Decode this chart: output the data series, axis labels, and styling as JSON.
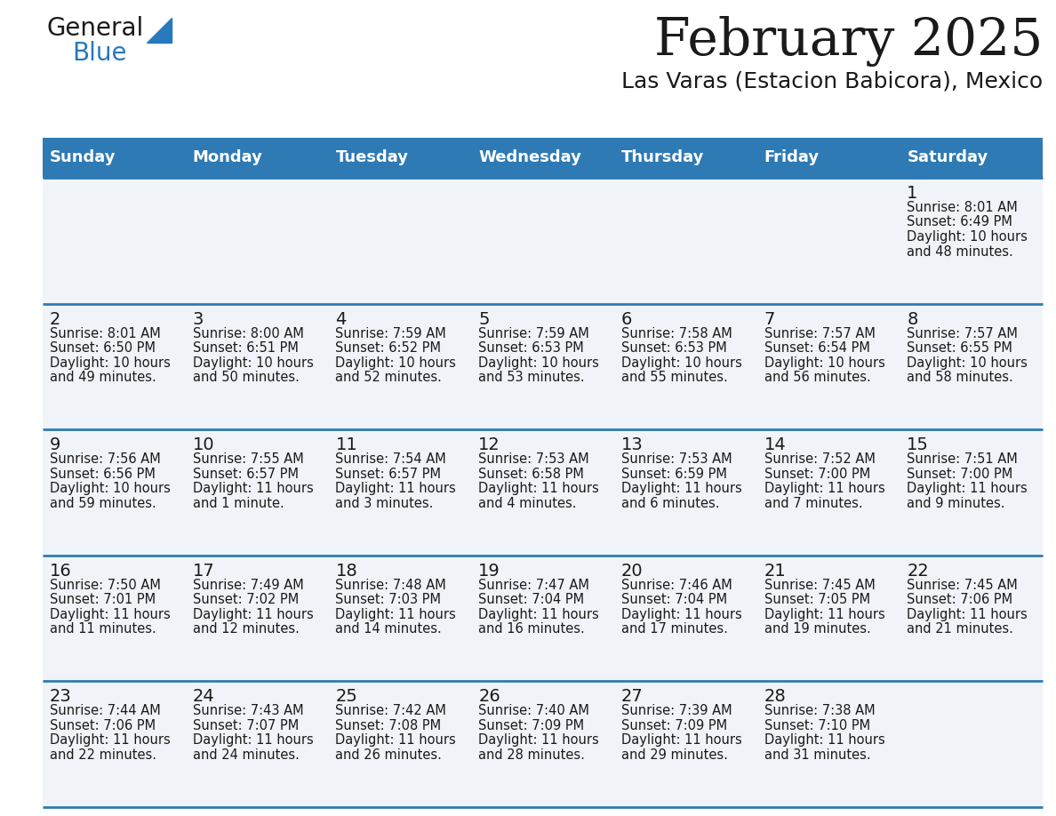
{
  "title": "February 2025",
  "subtitle": "Las Varas (Estacion Babicora), Mexico",
  "header_bg_color": "#2e7ab5",
  "header_text_color": "#ffffff",
  "bg_color": "#ffffff",
  "cell_bg": "#f0f4f8",
  "divider_color": "#2e7ab5",
  "day_names": [
    "Sunday",
    "Monday",
    "Tuesday",
    "Wednesday",
    "Thursday",
    "Friday",
    "Saturday"
  ],
  "days": [
    {
      "day": 1,
      "col": 6,
      "row": 0,
      "sunrise": "8:01 AM",
      "sunset": "6:49 PM",
      "daylight_line1": "Daylight: 10 hours",
      "daylight_line2": "and 48 minutes."
    },
    {
      "day": 2,
      "col": 0,
      "row": 1,
      "sunrise": "8:01 AM",
      "sunset": "6:50 PM",
      "daylight_line1": "Daylight: 10 hours",
      "daylight_line2": "and 49 minutes."
    },
    {
      "day": 3,
      "col": 1,
      "row": 1,
      "sunrise": "8:00 AM",
      "sunset": "6:51 PM",
      "daylight_line1": "Daylight: 10 hours",
      "daylight_line2": "and 50 minutes."
    },
    {
      "day": 4,
      "col": 2,
      "row": 1,
      "sunrise": "7:59 AM",
      "sunset": "6:52 PM",
      "daylight_line1": "Daylight: 10 hours",
      "daylight_line2": "and 52 minutes."
    },
    {
      "day": 5,
      "col": 3,
      "row": 1,
      "sunrise": "7:59 AM",
      "sunset": "6:53 PM",
      "daylight_line1": "Daylight: 10 hours",
      "daylight_line2": "and 53 minutes."
    },
    {
      "day": 6,
      "col": 4,
      "row": 1,
      "sunrise": "7:58 AM",
      "sunset": "6:53 PM",
      "daylight_line1": "Daylight: 10 hours",
      "daylight_line2": "and 55 minutes."
    },
    {
      "day": 7,
      "col": 5,
      "row": 1,
      "sunrise": "7:57 AM",
      "sunset": "6:54 PM",
      "daylight_line1": "Daylight: 10 hours",
      "daylight_line2": "and 56 minutes."
    },
    {
      "day": 8,
      "col": 6,
      "row": 1,
      "sunrise": "7:57 AM",
      "sunset": "6:55 PM",
      "daylight_line1": "Daylight: 10 hours",
      "daylight_line2": "and 58 minutes."
    },
    {
      "day": 9,
      "col": 0,
      "row": 2,
      "sunrise": "7:56 AM",
      "sunset": "6:56 PM",
      "daylight_line1": "Daylight: 10 hours",
      "daylight_line2": "and 59 minutes."
    },
    {
      "day": 10,
      "col": 1,
      "row": 2,
      "sunrise": "7:55 AM",
      "sunset": "6:57 PM",
      "daylight_line1": "Daylight: 11 hours",
      "daylight_line2": "and 1 minute."
    },
    {
      "day": 11,
      "col": 2,
      "row": 2,
      "sunrise": "7:54 AM",
      "sunset": "6:57 PM",
      "daylight_line1": "Daylight: 11 hours",
      "daylight_line2": "and 3 minutes."
    },
    {
      "day": 12,
      "col": 3,
      "row": 2,
      "sunrise": "7:53 AM",
      "sunset": "6:58 PM",
      "daylight_line1": "Daylight: 11 hours",
      "daylight_line2": "and 4 minutes."
    },
    {
      "day": 13,
      "col": 4,
      "row": 2,
      "sunrise": "7:53 AM",
      "sunset": "6:59 PM",
      "daylight_line1": "Daylight: 11 hours",
      "daylight_line2": "and 6 minutes."
    },
    {
      "day": 14,
      "col": 5,
      "row": 2,
      "sunrise": "7:52 AM",
      "sunset": "7:00 PM",
      "daylight_line1": "Daylight: 11 hours",
      "daylight_line2": "and 7 minutes."
    },
    {
      "day": 15,
      "col": 6,
      "row": 2,
      "sunrise": "7:51 AM",
      "sunset": "7:00 PM",
      "daylight_line1": "Daylight: 11 hours",
      "daylight_line2": "and 9 minutes."
    },
    {
      "day": 16,
      "col": 0,
      "row": 3,
      "sunrise": "7:50 AM",
      "sunset": "7:01 PM",
      "daylight_line1": "Daylight: 11 hours",
      "daylight_line2": "and 11 minutes."
    },
    {
      "day": 17,
      "col": 1,
      "row": 3,
      "sunrise": "7:49 AM",
      "sunset": "7:02 PM",
      "daylight_line1": "Daylight: 11 hours",
      "daylight_line2": "and 12 minutes."
    },
    {
      "day": 18,
      "col": 2,
      "row": 3,
      "sunrise": "7:48 AM",
      "sunset": "7:03 PM",
      "daylight_line1": "Daylight: 11 hours",
      "daylight_line2": "and 14 minutes."
    },
    {
      "day": 19,
      "col": 3,
      "row": 3,
      "sunrise": "7:47 AM",
      "sunset": "7:04 PM",
      "daylight_line1": "Daylight: 11 hours",
      "daylight_line2": "and 16 minutes."
    },
    {
      "day": 20,
      "col": 4,
      "row": 3,
      "sunrise": "7:46 AM",
      "sunset": "7:04 PM",
      "daylight_line1": "Daylight: 11 hours",
      "daylight_line2": "and 17 minutes."
    },
    {
      "day": 21,
      "col": 5,
      "row": 3,
      "sunrise": "7:45 AM",
      "sunset": "7:05 PM",
      "daylight_line1": "Daylight: 11 hours",
      "daylight_line2": "and 19 minutes."
    },
    {
      "day": 22,
      "col": 6,
      "row": 3,
      "sunrise": "7:45 AM",
      "sunset": "7:06 PM",
      "daylight_line1": "Daylight: 11 hours",
      "daylight_line2": "and 21 minutes."
    },
    {
      "day": 23,
      "col": 0,
      "row": 4,
      "sunrise": "7:44 AM",
      "sunset": "7:06 PM",
      "daylight_line1": "Daylight: 11 hours",
      "daylight_line2": "and 22 minutes."
    },
    {
      "day": 24,
      "col": 1,
      "row": 4,
      "sunrise": "7:43 AM",
      "sunset": "7:07 PM",
      "daylight_line1": "Daylight: 11 hours",
      "daylight_line2": "and 24 minutes."
    },
    {
      "day": 25,
      "col": 2,
      "row": 4,
      "sunrise": "7:42 AM",
      "sunset": "7:08 PM",
      "daylight_line1": "Daylight: 11 hours",
      "daylight_line2": "and 26 minutes."
    },
    {
      "day": 26,
      "col": 3,
      "row": 4,
      "sunrise": "7:40 AM",
      "sunset": "7:09 PM",
      "daylight_line1": "Daylight: 11 hours",
      "daylight_line2": "and 28 minutes."
    },
    {
      "day": 27,
      "col": 4,
      "row": 4,
      "sunrise": "7:39 AM",
      "sunset": "7:09 PM",
      "daylight_line1": "Daylight: 11 hours",
      "daylight_line2": "and 29 minutes."
    },
    {
      "day": 28,
      "col": 5,
      "row": 4,
      "sunrise": "7:38 AM",
      "sunset": "7:10 PM",
      "daylight_line1": "Daylight: 11 hours",
      "daylight_line2": "and 31 minutes."
    }
  ],
  "num_rows": 5,
  "logo_color1": "#1a1a1a",
  "logo_color2": "#2878be",
  "logo_triangle_color": "#2878be"
}
